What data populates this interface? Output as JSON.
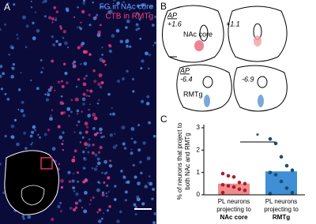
{
  "panel_a": {
    "label": "A",
    "legend": [
      "FG in NAc core",
      "CTB in RMTg"
    ]
  },
  "panel_b": {
    "label": "B",
    "ap": "AP",
    "levels": [
      "+1.6",
      "+1.1",
      "-6.4",
      "-6.9"
    ],
    "regions": [
      "NAc core",
      "RMTg"
    ]
  },
  "chart_data": {
    "type": "bar",
    "panel": "C",
    "ylabel": "% of neurons that project to both NAc and RMTg",
    "categories": [
      [
        "PL neurons",
        "projecting to",
        "NAc core"
      ],
      [
        "PL neurons",
        "projecting to",
        "RMTg"
      ]
    ],
    "values": [
      0.5,
      1.05
    ],
    "colors": [
      "#f28b8b",
      "#3f8fd6"
    ],
    "points": [
      [
        0.95,
        0.85,
        0.8,
        0.55,
        0.5,
        0.45,
        0.4,
        0.35,
        0.25,
        0.2,
        0.1
      ],
      [
        2.5,
        2.3,
        1.7,
        1.3,
        1.1,
        1.0,
        0.9,
        0.6,
        0.3,
        0.1,
        0.05
      ]
    ],
    "point_colors": [
      "#a3202e",
      "#1a4d6b"
    ],
    "significance": "*",
    "ylim": [
      0,
      3
    ],
    "yticks": [
      0,
      1,
      2,
      3
    ]
  }
}
